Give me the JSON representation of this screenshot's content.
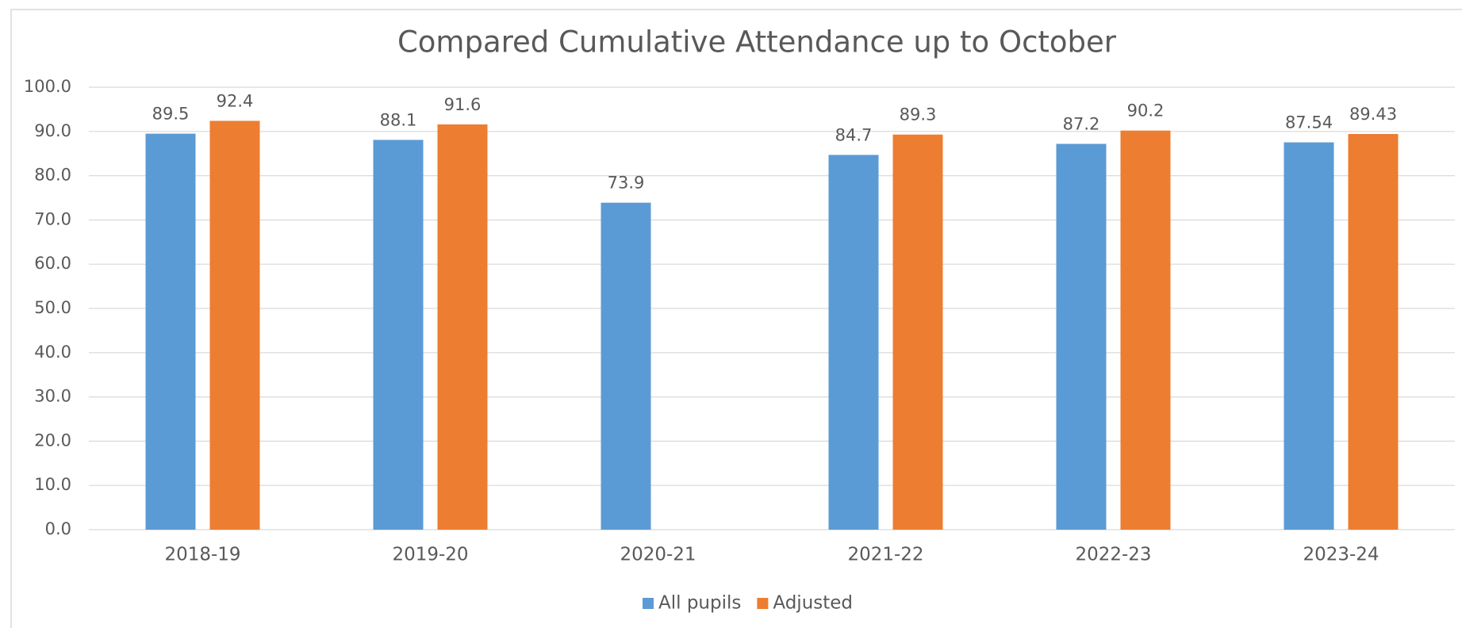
{
  "chart_data": {
    "type": "bar",
    "title": "Compared Cumulative Attendance up to October",
    "categories": [
      "2018-19",
      "2019-20",
      "2020-21",
      "2021-22",
      "2022-23",
      "2023-24"
    ],
    "series": [
      {
        "name": "All pupils",
        "color": "#5b9bd5",
        "values": [
          89.5,
          88.1,
          73.9,
          84.7,
          87.2,
          87.54
        ]
      },
      {
        "name": "Adjusted",
        "color": "#ed7d31",
        "values": [
          92.4,
          91.6,
          null,
          89.3,
          90.2,
          89.43
        ]
      }
    ],
    "ylim": [
      0,
      100
    ],
    "yticks": [
      {
        "value": 0,
        "label": "0.0"
      },
      {
        "value": 10,
        "label": "10.0"
      },
      {
        "value": 20,
        "label": "20.0"
      },
      {
        "value": 30,
        "label": "30.0"
      },
      {
        "value": 40,
        "label": "40.0"
      },
      {
        "value": 50,
        "label": "50.0"
      },
      {
        "value": 60,
        "label": "60.0"
      },
      {
        "value": 70,
        "label": "70.0"
      },
      {
        "value": 80,
        "label": "80.0"
      },
      {
        "value": 90,
        "label": "90.0"
      },
      {
        "value": 100,
        "label": "100.0"
      }
    ],
    "grid": true,
    "legend": "bottom"
  }
}
